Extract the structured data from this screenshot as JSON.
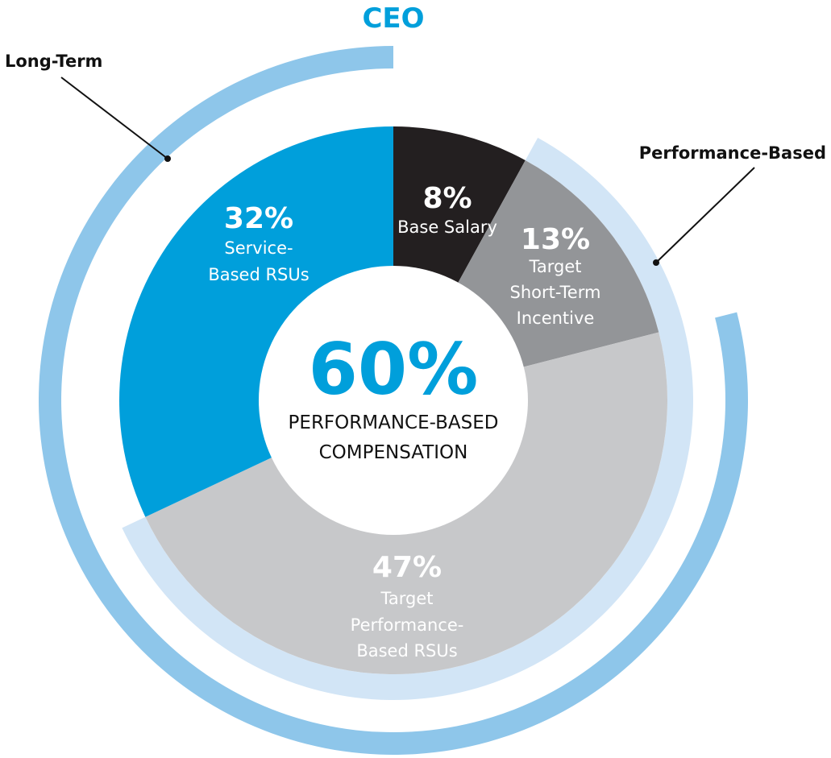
{
  "chart_data": {
    "type": "pie",
    "title": "CEO",
    "center": {
      "value": "60%",
      "label_lines": [
        "PERFORMANCE-BASED",
        "COMPENSATION"
      ]
    },
    "slices": [
      {
        "value": 8,
        "pct_label": "8%",
        "label_lines": [
          "Base Salary"
        ],
        "color": "#231f20"
      },
      {
        "value": 13,
        "pct_label": "13%",
        "label_lines": [
          "Target",
          "Short-Term",
          "Incentive"
        ],
        "color": "#939598"
      },
      {
        "value": 47,
        "pct_label": "47%",
        "label_lines": [
          "Target",
          "Performance-",
          "Based RSUs"
        ],
        "color": "#c7c8ca"
      },
      {
        "value": 32,
        "pct_label": "32%",
        "label_lines": [
          "Service-",
          "Based RSUs"
        ],
        "color": "#009fdb"
      }
    ],
    "arcs": [
      {
        "label": "Long-Term",
        "start_pct": 21,
        "end_pct": 100,
        "color": "#8ec6ea"
      },
      {
        "label": "Performance-Based",
        "start_pct": 8,
        "end_pct": 68,
        "color": "#d2e5f6"
      }
    ],
    "colors": {
      "title": "#009fdb",
      "center_value": "#009fdb",
      "callout_line": "#111111"
    }
  }
}
